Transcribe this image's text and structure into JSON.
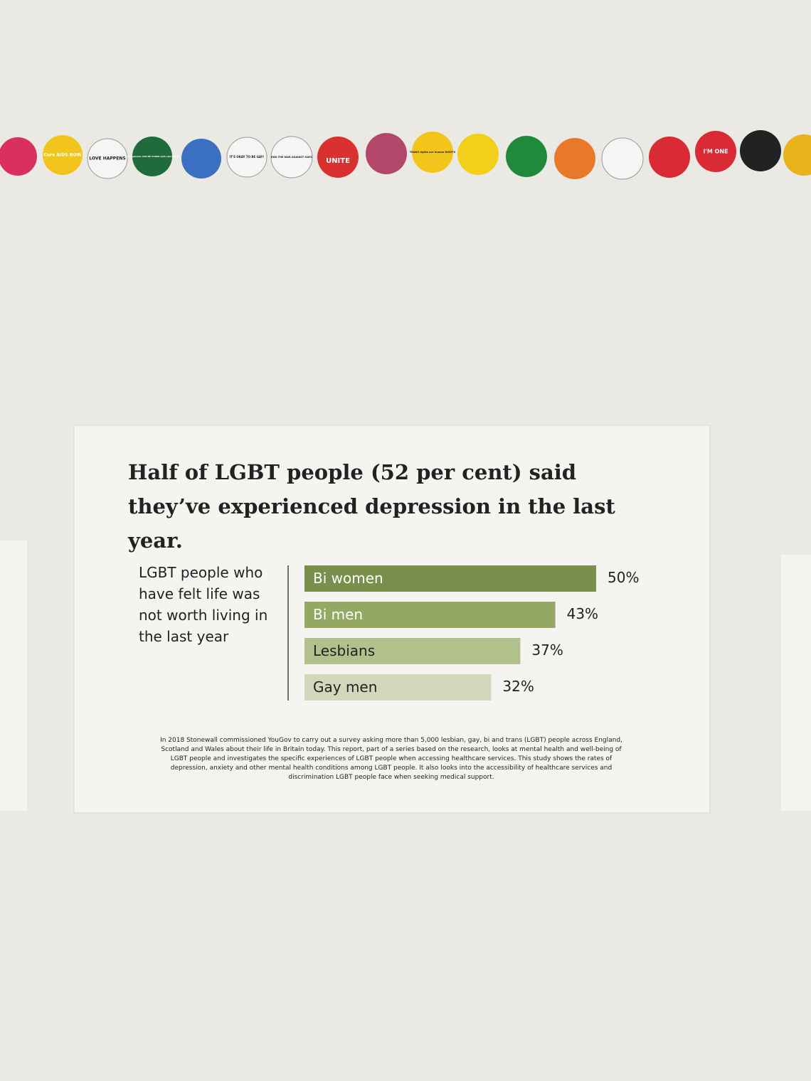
{
  "badges": [
    "Cure AIDS NOW",
    "LOVE HAPPENS",
    "Homophobia CAN BE CURED with education",
    "IT'S OKAY TO BE GAY!",
    "END THE WAR AGAINST GAYS",
    "UNITE",
    "TRANS rights are human RIGHTS",
    "I'M ONE"
  ],
  "chart_data": {
    "type": "bar",
    "orientation": "horizontal",
    "title": "Half of LGBT people (52 per cent) said they’ve experienced depression in the last year.",
    "y_label": "LGBT people who have felt life was not worth living in the last year",
    "categories": [
      "Bi women",
      "Bi men",
      "Lesbians",
      "Gay men"
    ],
    "values": [
      50,
      43,
      37,
      32
    ],
    "value_labels": [
      "50%",
      "43%",
      "37%",
      "32%"
    ],
    "colors": [
      "#7b8f4c",
      "#93a862",
      "#b2c08b",
      "#d1d8bb"
    ]
  },
  "note": "In 2018 Stonewall commissioned YouGov to carry out a survey asking more than 5,000 lesbian, gay, bi and trans (LGBT) people across England, Scotland and Wales about their life in Britain today. This report, part of a series based on the research, looks at mental health and well-being of LGBT people and investigates the specific experiences of LGBT people when accessing healthcare services. This study shows the rates of depression, anxiety and other mental health conditions among LGBT people. It also looks into the accessibility of healthcare services and discrimination LGBT people face when seeking medical support."
}
